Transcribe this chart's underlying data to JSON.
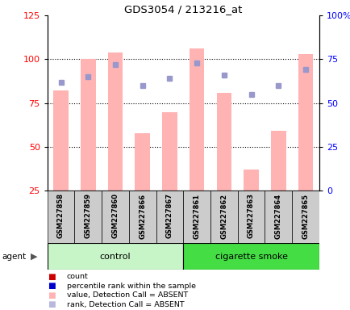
{
  "title": "GDS3054 / 213216_at",
  "samples": [
    "GSM227858",
    "GSM227859",
    "GSM227860",
    "GSM227866",
    "GSM227867",
    "GSM227861",
    "GSM227862",
    "GSM227863",
    "GSM227864",
    "GSM227865"
  ],
  "bar_values": [
    82,
    100,
    104,
    58,
    70,
    106,
    81,
    37,
    59,
    103
  ],
  "dot_values": [
    62,
    65,
    72,
    60,
    64,
    73,
    66,
    55,
    60,
    69
  ],
  "bar_color": "#ffb3b3",
  "dot_color": "#9898cc",
  "left_yticks": [
    25,
    50,
    75,
    100,
    125
  ],
  "right_yticks": [
    0,
    25,
    50,
    75,
    100
  ],
  "right_yticklabels": [
    "0",
    "25",
    "50",
    "75",
    "100%"
  ],
  "ylim_left": [
    25,
    125
  ],
  "ylim_right": [
    0,
    100
  ],
  "control_color": "#c8f5c8",
  "smoke_color": "#44dd44",
  "control_label": "control",
  "smoke_label": "cigarette smoke",
  "agent_label": "agent",
  "legend_colors": [
    "#cc0000",
    "#0000cc",
    "#ffb3b3",
    "#b8b8dd"
  ],
  "legend_labels": [
    "count",
    "percentile rank within the sample",
    "value, Detection Call = ABSENT",
    "rank, Detection Call = ABSENT"
  ]
}
